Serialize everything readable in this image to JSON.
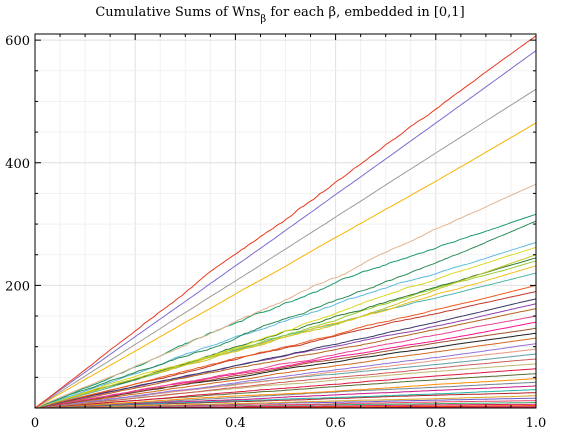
{
  "chart_data": {
    "type": "line",
    "title": "Cumulative Sums of Wns_β for each β, embedded in [0,1]",
    "title_parts": {
      "main": "Cumulative Sums of Wns",
      "subscript": "β",
      "rest": " for each β, embedded in [0,1]"
    },
    "xlabel": "",
    "ylabel": "",
    "xlim": [
      0,
      1
    ],
    "ylim": [
      0,
      610
    ],
    "x_ticks": [
      0,
      0.2,
      0.4,
      0.6,
      0.8,
      1.0
    ],
    "x_tick_labels": [
      "0",
      "0.2",
      "0.4",
      "0.6",
      "0.8",
      "1.0"
    ],
    "y_ticks": [
      200,
      400,
      600
    ],
    "y_tick_labels": [
      "200",
      "400",
      "600"
    ],
    "grid": true,
    "legend": "none",
    "series": [
      {
        "end": 607,
        "color": "#e8381f",
        "noise": 2.5
      },
      {
        "end": 583,
        "color": "#7b6bcf",
        "noise": 0.4
      },
      {
        "end": 520,
        "color": "#a39898",
        "noise": 0.4
      },
      {
        "end": 465,
        "color": "#f5b400",
        "noise": 0.5
      },
      {
        "end": 365,
        "color": "#e3b48e",
        "noise": 2.5
      },
      {
        "end": 316,
        "color": "#1a9a6b",
        "noise": 3.0
      },
      {
        "end": 305,
        "color": "#2e8b57",
        "noise": 2.5
      },
      {
        "end": 270,
        "color": "#5bbbe0",
        "noise": 2.0
      },
      {
        "end": 262,
        "color": "#d9d91f",
        "noise": 2.0
      },
      {
        "end": 250,
        "color": "#c6c62a",
        "noise": 2.0
      },
      {
        "end": 245,
        "color": "#2e7d32",
        "noise": 2.5
      },
      {
        "end": 240,
        "color": "#9acd32",
        "noise": 2.0
      },
      {
        "end": 232,
        "color": "#f0c020",
        "noise": 2.0
      },
      {
        "end": 220,
        "color": "#4db6ac",
        "noise": 1.5
      },
      {
        "end": 200,
        "color": "#ef5a1f",
        "noise": 1.5
      },
      {
        "end": 190,
        "color": "#c0392b",
        "noise": 1.5
      },
      {
        "end": 178,
        "color": "#3a3a6a",
        "noise": 1.2
      },
      {
        "end": 170,
        "color": "#8e44ad",
        "noise": 1.2
      },
      {
        "end": 162,
        "color": "#b5651d",
        "noise": 1.0
      },
      {
        "end": 150,
        "color": "#e84393",
        "noise": 1.2
      },
      {
        "end": 140,
        "color": "#ff1493",
        "noise": 1.0
      },
      {
        "end": 130,
        "color": "#a0522d",
        "noise": 1.0
      },
      {
        "end": 122,
        "color": "#1f1f1f",
        "noise": 0.8
      },
      {
        "end": 114,
        "color": "#d2691e",
        "noise": 0.8
      },
      {
        "end": 105,
        "color": "#9370db",
        "noise": 0.8
      },
      {
        "end": 96,
        "color": "#e9967a",
        "noise": 0.8
      },
      {
        "end": 88,
        "color": "#5f9ea0",
        "noise": 0.7
      },
      {
        "end": 80,
        "color": "#cd5c5c",
        "noise": 0.7
      },
      {
        "end": 72,
        "color": "#bdb76b",
        "noise": 0.6
      },
      {
        "end": 64,
        "color": "#dc143c",
        "noise": 0.6
      },
      {
        "end": 56,
        "color": "#556b2f",
        "noise": 0.5
      },
      {
        "end": 48,
        "color": "#ff8c00",
        "noise": 0.5
      },
      {
        "end": 42,
        "color": "#708090",
        "noise": 0.5
      },
      {
        "end": 36,
        "color": "#c71585",
        "noise": 0.4
      },
      {
        "end": 30,
        "color": "#20b2aa",
        "noise": 0.4
      },
      {
        "end": 25,
        "color": "#b22222",
        "noise": 0.4
      },
      {
        "end": 20,
        "color": "#daa520",
        "noise": 0.3
      },
      {
        "end": 16,
        "color": "#6a5acd",
        "noise": 0.3
      },
      {
        "end": 12,
        "color": "#e9446a",
        "noise": 0.3
      },
      {
        "end": 9,
        "color": "#3cb371",
        "noise": 0.2
      },
      {
        "end": 6,
        "color": "#d81b60",
        "noise": 0.2
      },
      {
        "end": 4,
        "color": "#ff4500",
        "noise": 0.2
      },
      {
        "end": 2,
        "color": "#c2185b",
        "noise": 0.1
      },
      {
        "end": 1,
        "color": "#e53935",
        "noise": 0.1
      }
    ]
  }
}
